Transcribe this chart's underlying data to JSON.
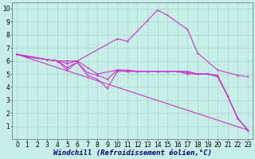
{
  "bg_color": "#c8eee8",
  "grid_color": "#a0d8cc",
  "line_color": "#cc33cc",
  "markersize": 2.0,
  "linewidth": 0.8,
  "xlabel": "Windchill (Refroidissement éolien,°C)",
  "xlabel_fontsize": 6.5,
  "xlim": [
    -0.5,
    23.5
  ],
  "ylim": [
    0,
    10.5
  ],
  "xticks": [
    0,
    1,
    2,
    3,
    4,
    5,
    6,
    7,
    8,
    9,
    10,
    11,
    12,
    13,
    14,
    15,
    16,
    17,
    18,
    19,
    20,
    21,
    22,
    23
  ],
  "yticks": [
    1,
    2,
    3,
    4,
    5,
    6,
    7,
    8,
    9,
    10
  ],
  "tick_fontsize": 5.5,
  "lines": [
    {
      "x": [
        0,
        1,
        3,
        4,
        5,
        6,
        10,
        11,
        13,
        14,
        15,
        17,
        18,
        20,
        22,
        23
      ],
      "y": [
        6.5,
        6.3,
        6.1,
        6.0,
        6.0,
        6.0,
        7.7,
        7.5,
        9.1,
        9.9,
        9.5,
        8.4,
        6.6,
        5.3,
        4.9,
        4.8
      ]
    },
    {
      "x": [
        0,
        3,
        4,
        5,
        6,
        7,
        8,
        10,
        11,
        12,
        13,
        14,
        15,
        16,
        17,
        18,
        19,
        20,
        21,
        22,
        23
      ],
      "y": [
        6.5,
        6.1,
        6.0,
        5.8,
        6.0,
        5.5,
        5.0,
        5.3,
        5.3,
        5.2,
        5.2,
        5.2,
        5.2,
        5.2,
        5.2,
        5.0,
        5.0,
        4.9,
        3.3,
        1.6,
        0.7
      ]
    },
    {
      "x": [
        0,
        3,
        4,
        5,
        6,
        7,
        8,
        9,
        10,
        11,
        12,
        13,
        14,
        15,
        16,
        17,
        18,
        19,
        20,
        21,
        22,
        23
      ],
      "y": [
        6.5,
        6.1,
        6.0,
        5.5,
        5.9,
        5.1,
        4.9,
        4.6,
        5.3,
        5.2,
        5.2,
        5.2,
        5.2,
        5.2,
        5.2,
        5.1,
        5.0,
        5.0,
        4.8,
        3.3,
        1.6,
        0.7
      ]
    },
    {
      "x": [
        0,
        3,
        4,
        5,
        6,
        7,
        8,
        9,
        10,
        11,
        12,
        13,
        14,
        15,
        16,
        17,
        18,
        19,
        20,
        21,
        22,
        23
      ],
      "y": [
        6.5,
        6.1,
        6.0,
        5.3,
        5.9,
        4.9,
        4.6,
        3.9,
        5.2,
        5.2,
        5.2,
        5.2,
        5.2,
        5.2,
        5.2,
        5.0,
        5.0,
        5.0,
        4.8,
        3.3,
        1.6,
        0.7
      ]
    },
    {
      "x": [
        0,
        23
      ],
      "y": [
        6.5,
        0.7
      ]
    }
  ]
}
